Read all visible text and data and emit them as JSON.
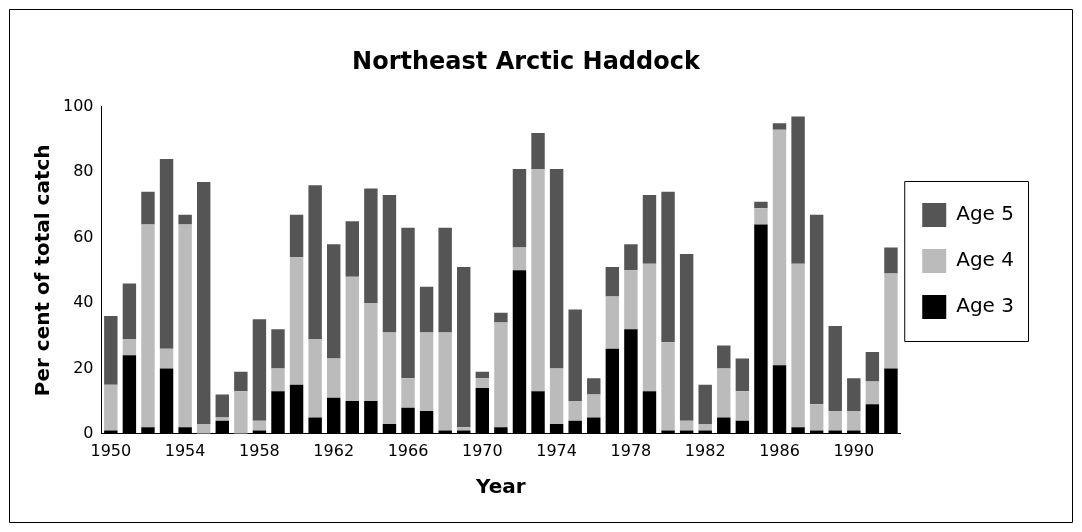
{
  "chart_data": {
    "type": "bar",
    "title": "Northeast Arctic Haddock",
    "xlabel": "Year",
    "ylabel": "Per cent of total catch",
    "categories": [
      "1950",
      null,
      null,
      null,
      "1954",
      null,
      null,
      null,
      "1958",
      null,
      null,
      null,
      "1962",
      null,
      null,
      null,
      "1966",
      null,
      null,
      null,
      "1970",
      null,
      null,
      null,
      "1974",
      null,
      null,
      null,
      "1978",
      null,
      null,
      null,
      "1982",
      null,
      null,
      null,
      "1986",
      null,
      null,
      null,
      "1990",
      null,
      null
    ],
    "stacked": true,
    "series": [
      {
        "name": "Age 3",
        "color": "#000000",
        "values": [
          1,
          24,
          2,
          20,
          2,
          0,
          4,
          0,
          1,
          13,
          15,
          5,
          11,
          10,
          10,
          3,
          8,
          7,
          1,
          1,
          14,
          2,
          50,
          13,
          3,
          4,
          5,
          26,
          32,
          13,
          1,
          1,
          1,
          5,
          4,
          64,
          21,
          2,
          1,
          1,
          1,
          9,
          20
        ]
      },
      {
        "name": "Age 4",
        "color": "#bbbbbb",
        "values": [
          14,
          5,
          62,
          6,
          62,
          3,
          1,
          13,
          3,
          7,
          39,
          24,
          12,
          38,
          30,
          28,
          9,
          24,
          30,
          1,
          3,
          32,
          7,
          68,
          17,
          6,
          7,
          16,
          18,
          39,
          27,
          3,
          2,
          15,
          9,
          5,
          72,
          50,
          8,
          6,
          6,
          7,
          29
        ]
      },
      {
        "name": "Age 5",
        "color": "#555555",
        "values": [
          21,
          17,
          10,
          58,
          3,
          74,
          7,
          6,
          31,
          12,
          13,
          47,
          35,
          17,
          35,
          42,
          46,
          14,
          32,
          49,
          2,
          3,
          24,
          11,
          61,
          28,
          5,
          9,
          8,
          21,
          46,
          51,
          12,
          7,
          10,
          2,
          2,
          45,
          58,
          26,
          10,
          9,
          8
        ]
      }
    ],
    "ylim": [
      0,
      100
    ],
    "yticks": [
      0,
      20,
      40,
      60,
      80,
      100
    ],
    "legend": "right"
  }
}
